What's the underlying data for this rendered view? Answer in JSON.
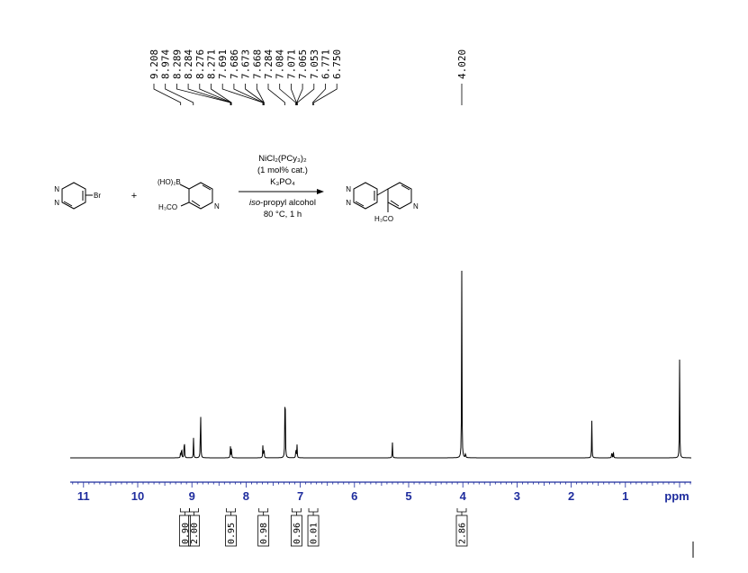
{
  "chart_data": {
    "type": "line",
    "xlabel": "ppm",
    "xlim": [
      11.35,
      0.0
    ],
    "x_ticks": [
      "11",
      "10",
      "9",
      "8",
      "7",
      "6",
      "5",
      "4",
      "3",
      "2",
      "1"
    ],
    "series": [
      {
        "peaks": [
          {
            "ppm": 9.21,
            "h": 0.04
          },
          {
            "ppm": 9.19,
            "h": 0.12
          },
          {
            "ppm": 9.14,
            "h": 0.22
          },
          {
            "ppm": 8.97,
            "h": 0.17
          },
          {
            "ppm": 8.84,
            "h": 0.52
          },
          {
            "ppm": 8.29,
            "h": 0.1
          },
          {
            "ppm": 8.27,
            "h": 0.1
          },
          {
            "ppm": 7.69,
            "h": 0.11
          },
          {
            "ppm": 7.67,
            "h": 0.11
          },
          {
            "ppm": 7.28,
            "h": 0.88
          },
          {
            "ppm": 7.08,
            "h": 0.11
          },
          {
            "ppm": 7.06,
            "h": 0.11
          },
          {
            "ppm": 5.3,
            "h": 0.14
          },
          {
            "ppm": 4.02,
            "h": 1.6
          },
          {
            "ppm": 3.95,
            "h": 0.05
          },
          {
            "ppm": 1.62,
            "h": 0.32
          },
          {
            "ppm": 1.25,
            "h": 0.07
          },
          {
            "ppm": 1.22,
            "h": 0.05
          },
          {
            "ppm": 0.0,
            "h": 0.84
          }
        ]
      }
    ],
    "peak_labels": [
      "9.208",
      "8.974",
      "8.289",
      "8.284",
      "8.276",
      "8.271",
      "7.691",
      "7.686",
      "7.673",
      "7.668",
      "7.284",
      "7.084",
      "7.071",
      "7.065",
      "7.053",
      "6.771",
      "6.750",
      "4.020"
    ],
    "integrals": [
      {
        "ppm": 9.13,
        "value": "0.90"
      },
      {
        "ppm": 8.96,
        "value": "2.00"
      },
      {
        "ppm": 8.28,
        "value": "0.95"
      },
      {
        "ppm": 7.68,
        "value": "0.98"
      },
      {
        "ppm": 7.07,
        "value": "0.96"
      },
      {
        "ppm": 6.76,
        "value": "0.01"
      },
      {
        "ppm": 4.02,
        "value": "2.86"
      }
    ]
  },
  "reaction": {
    "reactant1_sub": "Br",
    "reactant2_boron": "(HO)₂B",
    "reactant2_methoxy": "H₃CO",
    "plus": "+",
    "catalyst": "NiCl₂(PCy₃)₂",
    "loading": "(1 mol% cat.)",
    "base": "K₃PO₄",
    "solvent_italic": "iso",
    "solvent_rest": "-propyl alcohol",
    "conditions": "80 °C, 1 h",
    "product_methoxy": "H₃CO",
    "atom_n": "N"
  },
  "colors": {
    "axis": "#1f2d9e",
    "spectrum": "#000000"
  }
}
